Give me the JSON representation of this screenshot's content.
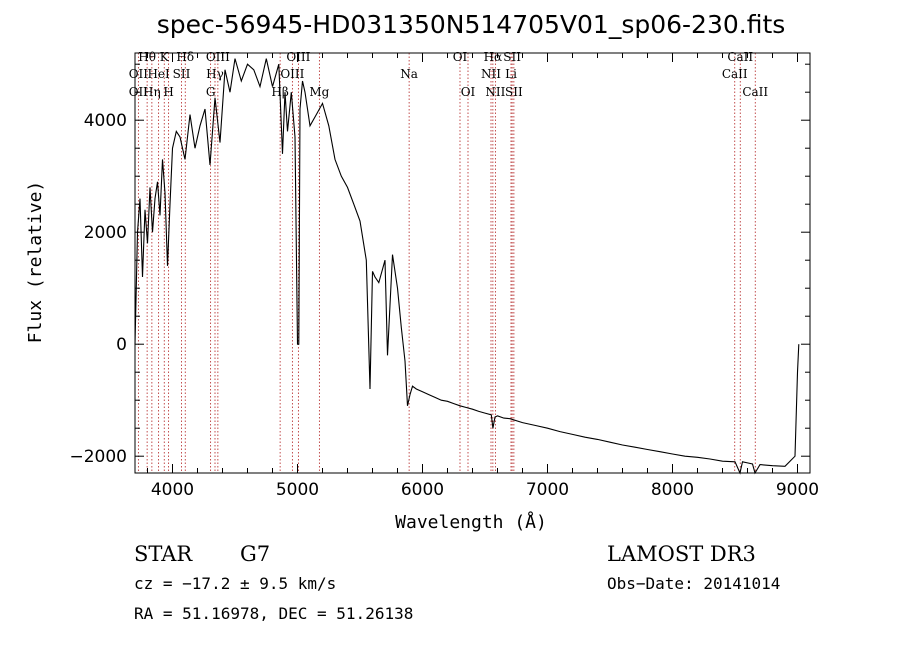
{
  "chart_data": {
    "type": "line",
    "title": "spec-56945-HD031350N514705V01_sp06-230.fits",
    "xlabel": "Wavelength (Å)",
    "ylabel": "Flux (relative)",
    "xlim": [
      3700,
      9100
    ],
    "ylim": [
      -2300,
      5200
    ],
    "x_ticks": [
      4000,
      5000,
      6000,
      7000,
      8000,
      9000
    ],
    "y_ticks": [
      -2000,
      0,
      2000,
      4000
    ],
    "grid": false,
    "series": [
      {
        "x": [
          3700,
          3720,
          3740,
          3760,
          3780,
          3800,
          3820,
          3840,
          3860,
          3880,
          3900,
          3920,
          3940,
          3960,
          3980,
          4000,
          4030,
          4060,
          4100,
          4140,
          4180,
          4220,
          4260,
          4300,
          4340,
          4380,
          4420,
          4460,
          4500,
          4550,
          4600,
          4650,
          4700,
          4750,
          4800,
          4850,
          4880,
          4900,
          4920,
          4950,
          4980,
          5000,
          5010,
          5020,
          5040,
          5060,
          5100,
          5150,
          5200,
          5250,
          5300,
          5350,
          5400,
          5450,
          5500,
          5550,
          5580,
          5600,
          5620,
          5650,
          5700,
          5720,
          5760,
          5800,
          5830,
          5860,
          5880,
          5900,
          5920,
          5950,
          6000,
          6050,
          6100,
          6150,
          6200,
          6250,
          6300,
          6350,
          6400,
          6450,
          6500,
          6550,
          6563,
          6580,
          6600,
          6650,
          6700,
          6800,
          6900,
          7000,
          7100,
          7200,
          7300,
          7400,
          7500,
          7600,
          7700,
          7800,
          7900,
          8000,
          8100,
          8200,
          8300,
          8400,
          8500,
          8540,
          8560,
          8600,
          8640,
          8660,
          8700,
          8800,
          8900,
          8980,
          9000,
          9010
        ],
        "y": [
          0,
          2000,
          2600,
          1200,
          2400,
          1800,
          2800,
          2000,
          2600,
          2900,
          2300,
          3300,
          2700,
          1400,
          2500,
          3500,
          3800,
          3700,
          3300,
          4100,
          3500,
          3900,
          4200,
          3200,
          4400,
          3600,
          4900,
          4500,
          5100,
          4700,
          5000,
          4900,
          4600,
          5100,
          4600,
          5000,
          3400,
          4500,
          3800,
          4500,
          3700,
          0,
          0,
          4200,
          4700,
          4500,
          3900,
          4100,
          4300,
          3900,
          3300,
          3000,
          2800,
          2500,
          2200,
          1500,
          -800,
          1300,
          1200,
          1100,
          1500,
          -200,
          1600,
          1000,
          300,
          -300,
          -1100,
          -900,
          -750,
          -800,
          -850,
          -900,
          -950,
          -1000,
          -1020,
          -1060,
          -1100,
          -1130,
          -1160,
          -1200,
          -1230,
          -1260,
          -1500,
          -1300,
          -1280,
          -1320,
          -1330,
          -1400,
          -1450,
          -1500,
          -1560,
          -1610,
          -1660,
          -1700,
          -1750,
          -1800,
          -1840,
          -1880,
          -1920,
          -1960,
          -2000,
          -2020,
          -2050,
          -2090,
          -2100,
          -2300,
          -2100,
          -2120,
          -2140,
          -2300,
          -2150,
          -2170,
          -2180,
          -2000,
          -500,
          0
        ]
      }
    ],
    "spectral_lines": [
      {
        "label": "Hθ",
        "x": 3797,
        "row": 0
      },
      {
        "label": "OII",
        "x": 3727,
        "row": 1
      },
      {
        "label": "OII",
        "x": 3727,
        "row": 2
      },
      {
        "label": "Hη",
        "x": 3835,
        "row": 2
      },
      {
        "label": "K",
        "x": 3934,
        "row": 0
      },
      {
        "label": "HeI",
        "x": 3889,
        "row": 1
      },
      {
        "label": "H",
        "x": 3969,
        "row": 2
      },
      {
        "label": "SII",
        "x": 4072,
        "row": 1
      },
      {
        "label": "Hδ",
        "x": 4102,
        "row": 0
      },
      {
        "label": "OIII",
        "x": 4363,
        "row": 0
      },
      {
        "label": "Hγ",
        "x": 4340,
        "row": 1
      },
      {
        "label": "G",
        "x": 4305,
        "row": 2
      },
      {
        "label": "Hβ",
        "x": 4861,
        "row": 2
      },
      {
        "label": "OIII",
        "x": 5007,
        "row": 0
      },
      {
        "label": "OIII",
        "x": 4959,
        "row": 1
      },
      {
        "label": "Mg",
        "x": 5175,
        "row": 2
      },
      {
        "label": "Na",
        "x": 5893,
        "row": 1
      },
      {
        "label": "OI",
        "x": 6300,
        "row": 0
      },
      {
        "label": "OI",
        "x": 6364,
        "row": 2
      },
      {
        "label": "Hα",
        "x": 6563,
        "row": 0
      },
      {
        "label": "SII",
        "x": 6717,
        "row": 0
      },
      {
        "label": "NII",
        "x": 6548,
        "row": 1
      },
      {
        "label": "Li",
        "x": 6708,
        "row": 1
      },
      {
        "label": "NII",
        "x": 6583,
        "row": 2
      },
      {
        "label": "SII",
        "x": 6731,
        "row": 2
      },
      {
        "label": "CaII",
        "x": 8542,
        "row": 0
      },
      {
        "label": "CaII",
        "x": 8498,
        "row": 1
      },
      {
        "label": "CaII",
        "x": 8662,
        "row": 2
      }
    ]
  },
  "info": {
    "class_label": "STAR",
    "subclass": "G7",
    "survey": "LAMOST DR3",
    "cz": "cz = −17.2 ± 9.5 km/s",
    "obs_date": "Obs−Date: 20141014",
    "coords": "RA =  51.16978, DEC =  51.26138"
  },
  "colors": {
    "line_marker": "#b22222",
    "spectrum": "#000000"
  }
}
